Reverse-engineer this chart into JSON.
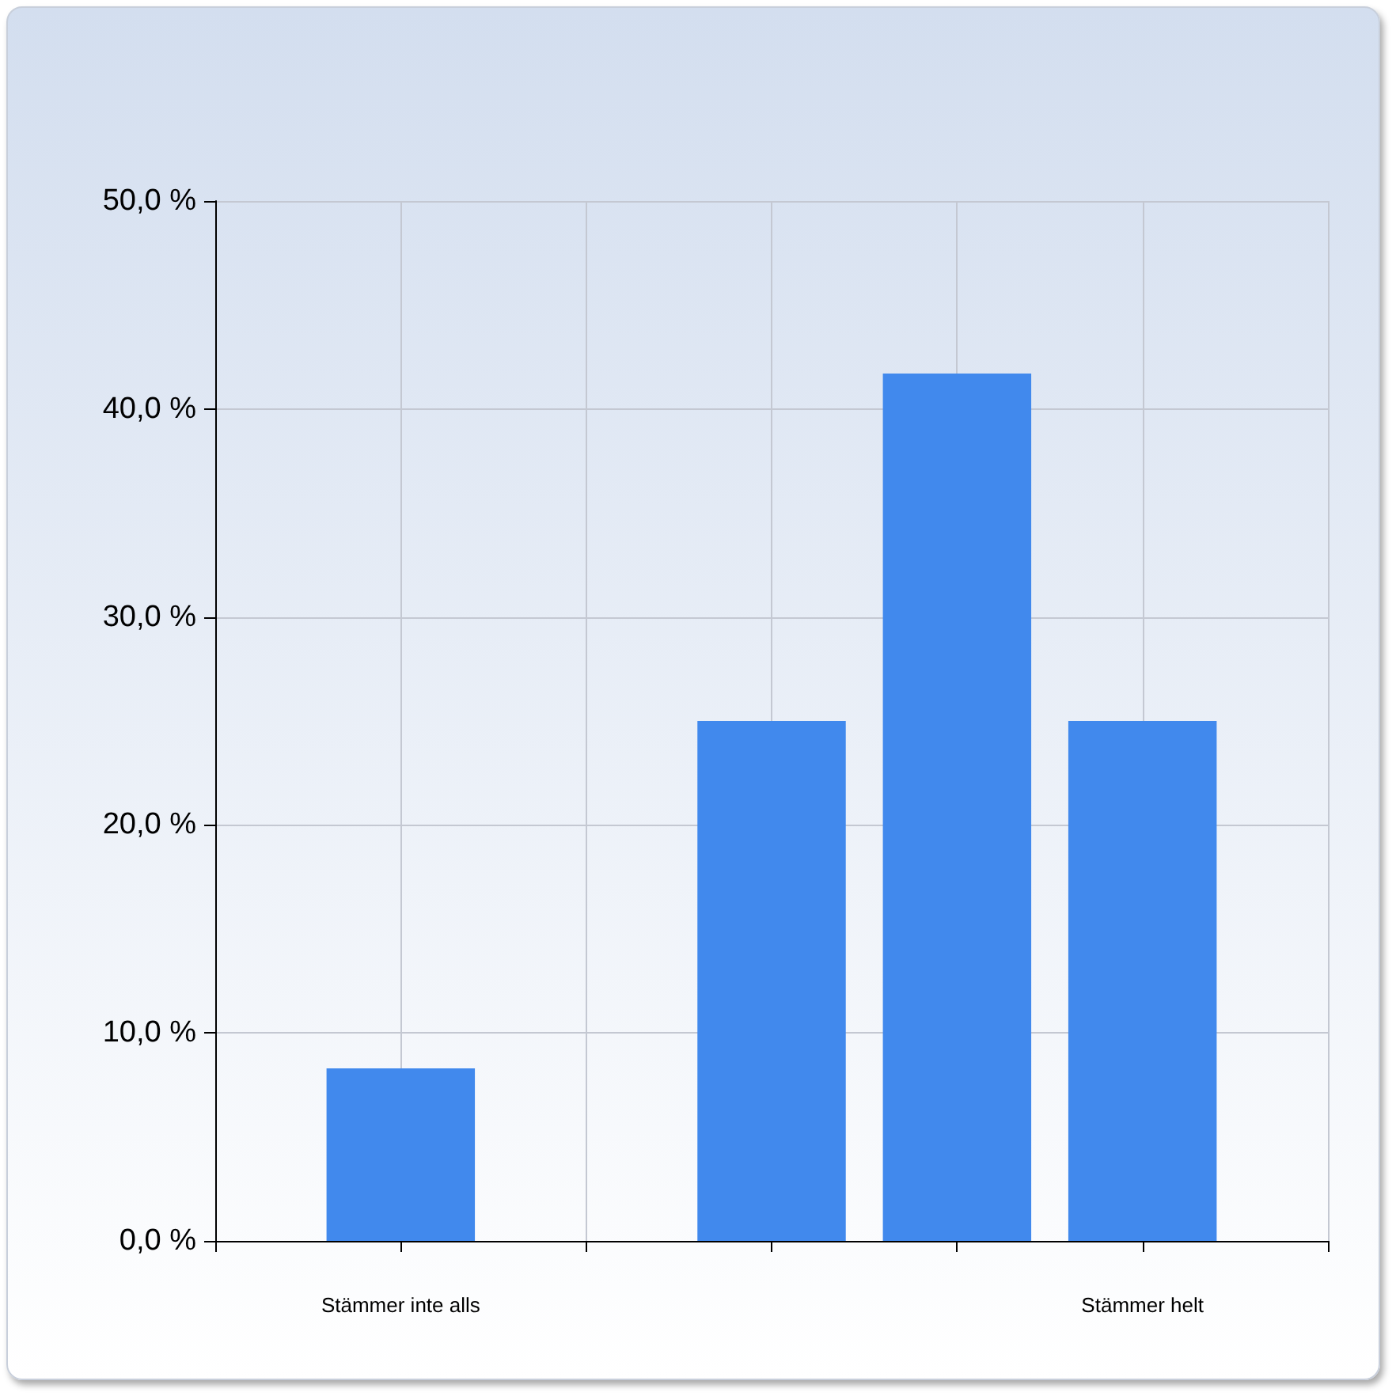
{
  "chart_data": {
    "type": "bar",
    "categories": [
      "Stämmer inte alls",
      null,
      null,
      null,
      "Stämmer helt"
    ],
    "values": [
      8.3,
      0,
      25,
      41.7,
      25
    ],
    "color": "#4189ed",
    "ylim": [
      0,
      50
    ],
    "yticks": [
      {
        "value": 0,
        "label": "0,0 %"
      },
      {
        "value": 10,
        "label": "10,0 %"
      },
      {
        "value": 20,
        "label": "20,0 %"
      },
      {
        "value": 30,
        "label": "30,0 %"
      },
      {
        "value": 40,
        "label": "40,0 %"
      },
      {
        "value": 50,
        "label": "50,0 %"
      }
    ],
    "grid": true
  }
}
